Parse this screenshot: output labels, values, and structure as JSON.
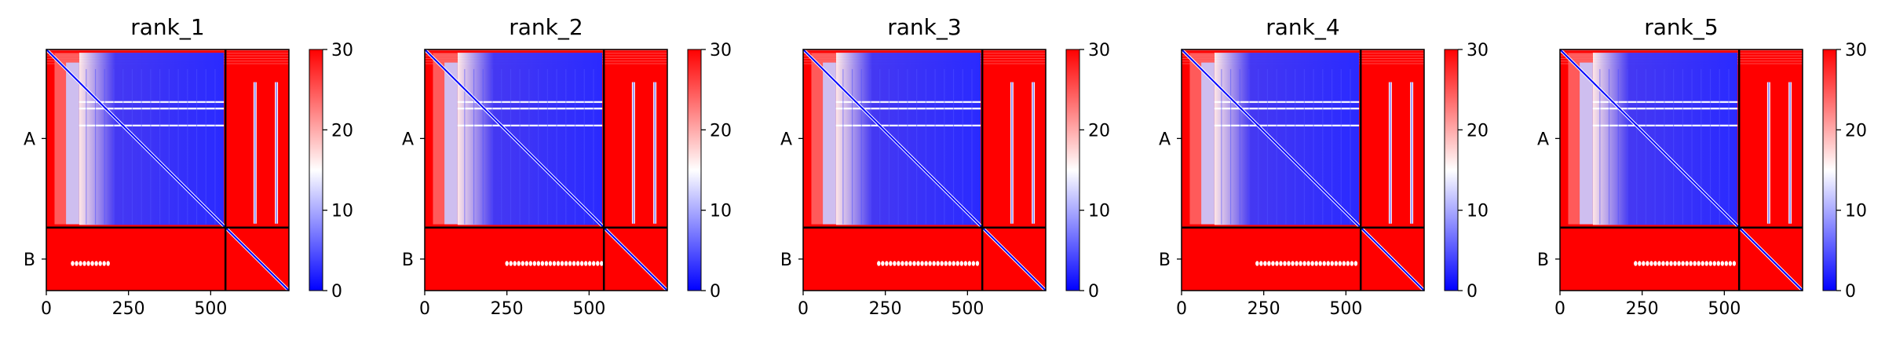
{
  "chart_data": [
    {
      "type": "heatmap",
      "title": "rank_1",
      "x_ticks": [
        "0",
        "250",
        "500"
      ],
      "x_tick_values": [
        0,
        250,
        500
      ],
      "xlim": [
        0,
        738
      ],
      "y_tick_labels": [
        "A",
        "B"
      ],
      "chains": [
        {
          "name": "A",
          "start": 0,
          "end": 545
        },
        {
          "name": "B",
          "start": 545,
          "end": 738
        }
      ],
      "colorbar": {
        "min": 0,
        "max": 30,
        "ticks": [
          "0",
          "10",
          "20",
          "30"
        ],
        "tick_values": [
          0,
          10,
          20,
          30
        ],
        "colormap": "bwr"
      },
      "inter_chain_bands": [
        [
          80,
          200
        ]
      ]
    },
    {
      "type": "heatmap",
      "title": "rank_2",
      "x_ticks": [
        "0",
        "250",
        "500"
      ],
      "x_tick_values": [
        0,
        250,
        500
      ],
      "xlim": [
        0,
        738
      ],
      "y_tick_labels": [
        "A",
        "B"
      ],
      "chains": [
        {
          "name": "A",
          "start": 0,
          "end": 545
        },
        {
          "name": "B",
          "start": 545,
          "end": 738
        }
      ],
      "colorbar": {
        "min": 0,
        "max": 30,
        "ticks": [
          "0",
          "10",
          "20",
          "30"
        ],
        "tick_values": [
          0,
          10,
          20,
          30
        ],
        "colormap": "bwr"
      },
      "inter_chain_bands": [
        [
          250,
          540
        ]
      ]
    },
    {
      "type": "heatmap",
      "title": "rank_3",
      "x_ticks": [
        "0",
        "250",
        "500"
      ],
      "x_tick_values": [
        0,
        250,
        500
      ],
      "xlim": [
        0,
        738
      ],
      "y_tick_labels": [
        "A",
        "B"
      ],
      "chains": [
        {
          "name": "A",
          "start": 0,
          "end": 545
        },
        {
          "name": "B",
          "start": 545,
          "end": 738
        }
      ],
      "colorbar": {
        "min": 0,
        "max": 30,
        "ticks": [
          "0",
          "10",
          "20",
          "30"
        ],
        "tick_values": [
          0,
          10,
          20,
          30
        ],
        "colormap": "bwr"
      },
      "inter_chain_bands": [
        [
          230,
          540
        ]
      ]
    },
    {
      "type": "heatmap",
      "title": "rank_4",
      "x_ticks": [
        "0",
        "250",
        "500"
      ],
      "x_tick_values": [
        0,
        250,
        500
      ],
      "xlim": [
        0,
        738
      ],
      "y_tick_labels": [
        "A",
        "B"
      ],
      "chains": [
        {
          "name": "A",
          "start": 0,
          "end": 545
        },
        {
          "name": "B",
          "start": 545,
          "end": 738
        }
      ],
      "colorbar": {
        "min": 0,
        "max": 30,
        "ticks": [
          "0",
          "10",
          "20",
          "30"
        ],
        "tick_values": [
          0,
          10,
          20,
          30
        ],
        "colormap": "bwr"
      },
      "inter_chain_bands": [
        [
          230,
          540
        ]
      ]
    },
    {
      "type": "heatmap",
      "title": "rank_5",
      "x_ticks": [
        "0",
        "250",
        "500"
      ],
      "x_tick_values": [
        0,
        250,
        500
      ],
      "xlim": [
        0,
        738
      ],
      "y_tick_labels": [
        "A",
        "B"
      ],
      "chains": [
        {
          "name": "A",
          "start": 0,
          "end": 545
        },
        {
          "name": "B",
          "start": 545,
          "end": 738
        }
      ],
      "colorbar": {
        "min": 0,
        "max": 30,
        "ticks": [
          "0",
          "10",
          "20",
          "30"
        ],
        "tick_values": [
          0,
          10,
          20,
          30
        ],
        "colormap": "bwr"
      },
      "inter_chain_bands": [
        [
          230,
          540
        ]
      ]
    }
  ]
}
